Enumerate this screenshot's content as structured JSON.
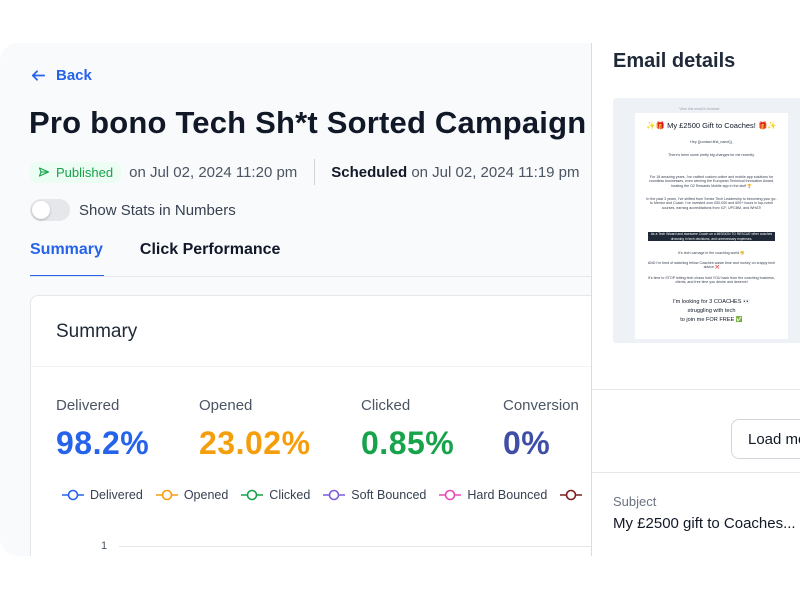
{
  "nav": {
    "back_label": "Back"
  },
  "page": {
    "title": "Pro bono Tech Sh*t Sorted Campaign Repeat",
    "status": "Published",
    "published_date": "on Jul 02, 2024 11:20 pm",
    "scheduled_label": "Scheduled",
    "scheduled_date": "on Jul 02, 2024 11:19 pm"
  },
  "toggle": {
    "label": "Show Stats in Numbers",
    "enabled": false
  },
  "tabs": [
    {
      "label": "Summary",
      "active": true
    },
    {
      "label": "Click Performance",
      "active": false
    }
  ],
  "summary": {
    "title": "Summary",
    "stats": [
      {
        "label": "Delivered",
        "value": "98.2%",
        "color": "#2563eb"
      },
      {
        "label": "Opened",
        "value": "23.02%",
        "color": "#f59e0b"
      },
      {
        "label": "Clicked",
        "value": "0.85%",
        "color": "#16a34a"
      },
      {
        "label": "Conversion",
        "value": "0%",
        "color": "#3f4fa5"
      }
    ],
    "legend": [
      {
        "label": "Delivered",
        "color": "#2563eb"
      },
      {
        "label": "Opened",
        "color": "#f59e0b"
      },
      {
        "label": "Clicked",
        "color": "#16a34a"
      },
      {
        "label": "Soft Bounced",
        "color": "#7c5cdb"
      },
      {
        "label": "Hard Bounced",
        "color": "#e84ab5"
      },
      {
        "label": "",
        "color": "#7f1d1d"
      }
    ],
    "y_tick": "1"
  },
  "email_details": {
    "title": "Email details",
    "preview": {
      "top_line": "View this email in browser",
      "headline": "My £2500 Gift to Coaches!",
      "greeting": "Hey {{contact.first_name}},",
      "lines": [
        "There's been some pretty big changes for me recently.",
        "For 18 amazing years, I've crafted custom online and mobile app solutions for countless businesses, even winning the European Technical Innovation Award, beating the O2 Rewards Mobile app in the stuff 🏆",
        "In the past 3 years, I've shifted from Senior Tech Leadership to becoming your go-to Mentor and Coach. I've invested over £50,000 and 600+ hours in top-notch courses, earning accreditations from ICF, UPCBM, and WHAT!",
        "As a Tech Wizard and awesome Coach on a MISSION TO RESCUE other coaches drowning in tech decisions, and unnecessary expenses.",
        "It's tech carnage in the coaching world 😬",
        "AND I'm tired of watching fellow Coaches waste time and money on crappy tech advice ❌",
        "It's time to STOP letting tech chaos hold YOU back from the coaching business, clients, and free time you desire and deserve!",
        "I'm looking for 3 COACHES 👀",
        "struggling with tech",
        "to join me FOR FREE ✅"
      ]
    },
    "load_more_label": "Load more",
    "subject_label": "Subject",
    "subject_value": "My £2500 gift to Coaches..."
  }
}
